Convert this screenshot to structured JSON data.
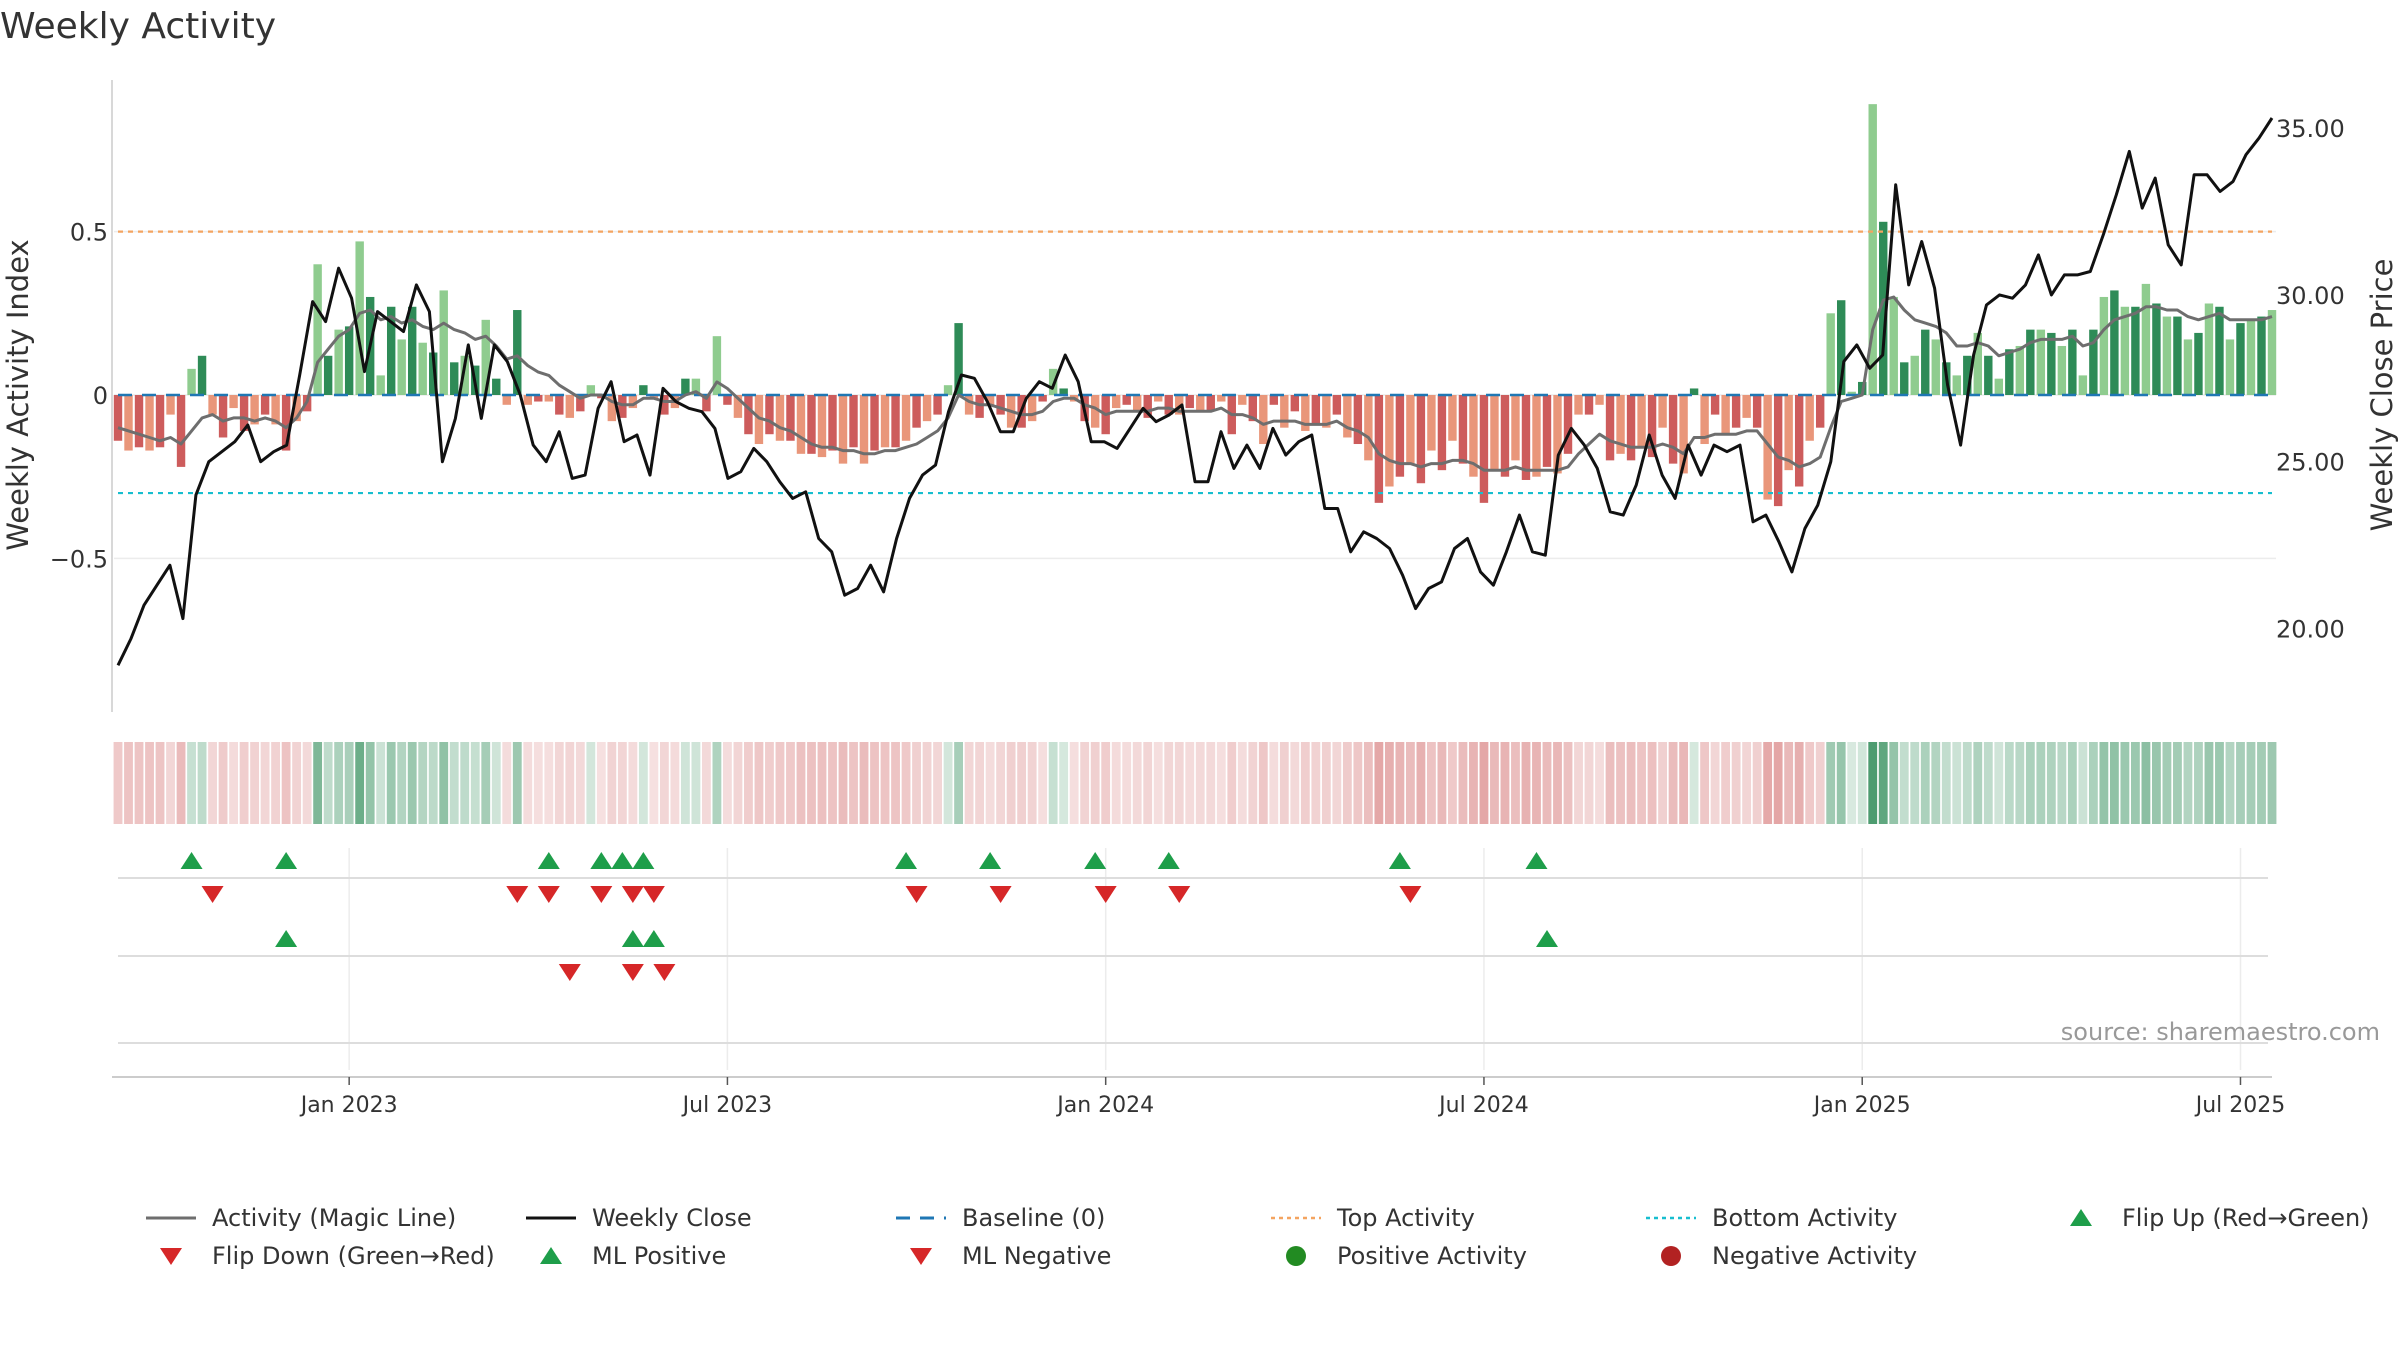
{
  "chart_data": {
    "type": "bar",
    "title": "Weekly Activity",
    "ylabel_left": "Weekly Activity Index",
    "ylabel_right": "Weekly Close Price",
    "source": "source: sharemaestro.com",
    "x_ticks": [
      "Jan 2023",
      "Jul 2023",
      "Jan 2024",
      "Jul 2024",
      "Jan 2025",
      "Jul 2025"
    ],
    "left_ticks": [
      "0.5",
      "0",
      "−0.5"
    ],
    "right_ticks": [
      "35.00",
      "30.00",
      "25.00",
      "20.00"
    ],
    "left_ylim": [
      -0.97,
      0.97
    ],
    "right_ylim": [
      17.5,
      36.5
    ],
    "top_activity": 0.5,
    "bottom_activity": -0.3,
    "activity": [
      -0.14,
      -0.17,
      -0.16,
      -0.17,
      -0.16,
      -0.06,
      -0.22,
      0.08,
      0.12,
      -0.06,
      -0.13,
      -0.04,
      -0.11,
      -0.09,
      -0.06,
      -0.09,
      -0.17,
      -0.08,
      -0.05,
      0.4,
      0.12,
      0.2,
      0.21,
      0.47,
      0.3,
      0.06,
      0.27,
      0.17,
      0.27,
      0.16,
      0.13,
      0.32,
      0.1,
      0.12,
      0.09,
      0.23,
      0.05,
      -0.03,
      0.26,
      -0.03,
      -0.02,
      -0.02,
      -0.06,
      -0.07,
      -0.05,
      0.03,
      -0.01,
      -0.08,
      -0.07,
      -0.04,
      0.03,
      -0.01,
      -0.06,
      -0.04,
      0.05,
      0.05,
      -0.05,
      0.18,
      -0.03,
      -0.07,
      -0.12,
      -0.15,
      -0.12,
      -0.14,
      -0.14,
      -0.18,
      -0.18,
      -0.19,
      -0.17,
      -0.21,
      -0.16,
      -0.21,
      -0.17,
      -0.16,
      -0.16,
      -0.14,
      -0.1,
      -0.08,
      -0.06,
      0.03,
      0.22,
      -0.06,
      -0.07,
      -0.03,
      -0.06,
      -0.1,
      -0.1,
      -0.08,
      -0.02,
      0.08,
      0.02,
      -0.02,
      -0.08,
      -0.1,
      -0.12,
      -0.04,
      -0.03,
      -0.05,
      -0.07,
      -0.02,
      -0.06,
      -0.06,
      -0.04,
      -0.05,
      -0.05,
      -0.02,
      -0.12,
      -0.03,
      -0.08,
      -0.15,
      -0.03,
      -0.1,
      -0.05,
      -0.11,
      -0.09,
      -0.1,
      -0.06,
      -0.13,
      -0.15,
      -0.2,
      -0.33,
      -0.28,
      -0.25,
      -0.21,
      -0.27,
      -0.17,
      -0.23,
      -0.14,
      -0.21,
      -0.25,
      -0.33,
      -0.23,
      -0.25,
      -0.2,
      -0.26,
      -0.25,
      -0.22,
      -0.24,
      -0.18,
      -0.06,
      -0.06,
      -0.03,
      -0.2,
      -0.18,
      -0.2,
      -0.16,
      -0.19,
      -0.1,
      -0.21,
      -0.24,
      0.02,
      -0.15,
      -0.06,
      -0.12,
      -0.1,
      -0.07,
      -0.1,
      -0.32,
      -0.34,
      -0.23,
      -0.28,
      -0.14,
      -0.1,
      0.25,
      0.29,
      0.01,
      0.04,
      0.89,
      0.53,
      0.3,
      0.1,
      0.12,
      0.2,
      0.17,
      0.1,
      0.06,
      0.12,
      0.19,
      0.12,
      0.05,
      0.14,
      0.15,
      0.2,
      0.2,
      0.19,
      0.15,
      0.2,
      0.06,
      0.2,
      0.3,
      0.32,
      0.27,
      0.27,
      0.34,
      0.28,
      0.24,
      0.24,
      0.17,
      0.19,
      0.28,
      0.27,
      0.17,
      0.22,
      0.23,
      0.24,
      0.26
    ],
    "magic_line": [
      -0.1,
      -0.11,
      -0.12,
      -0.13,
      -0.14,
      -0.13,
      -0.15,
      -0.11,
      -0.07,
      -0.06,
      -0.08,
      -0.07,
      -0.07,
      -0.08,
      -0.07,
      -0.08,
      -0.1,
      -0.07,
      -0.02,
      0.1,
      0.14,
      0.18,
      0.2,
      0.25,
      0.26,
      0.23,
      0.24,
      0.22,
      0.23,
      0.21,
      0.2,
      0.22,
      0.2,
      0.19,
      0.17,
      0.18,
      0.15,
      0.11,
      0.12,
      0.09,
      0.07,
      0.06,
      0.03,
      0.01,
      -0.01,
      0.0,
      0.0,
      -0.02,
      -0.03,
      -0.03,
      -0.01,
      -0.01,
      -0.02,
      -0.02,
      0.0,
      0.01,
      -0.01,
      0.04,
      0.02,
      -0.01,
      -0.04,
      -0.07,
      -0.08,
      -0.1,
      -0.11,
      -0.13,
      -0.15,
      -0.16,
      -0.16,
      -0.17,
      -0.17,
      -0.18,
      -0.18,
      -0.17,
      -0.17,
      -0.16,
      -0.15,
      -0.13,
      -0.11,
      -0.07,
      0.0,
      -0.02,
      -0.03,
      -0.03,
      -0.04,
      -0.05,
      -0.06,
      -0.06,
      -0.05,
      -0.02,
      -0.01,
      -0.01,
      -0.03,
      -0.04,
      -0.06,
      -0.05,
      -0.05,
      -0.05,
      -0.05,
      -0.04,
      -0.04,
      -0.05,
      -0.05,
      -0.05,
      -0.05,
      -0.04,
      -0.06,
      -0.06,
      -0.07,
      -0.09,
      -0.08,
      -0.08,
      -0.08,
      -0.09,
      -0.09,
      -0.09,
      -0.08,
      -0.1,
      -0.11,
      -0.13,
      -0.18,
      -0.2,
      -0.21,
      -0.21,
      -0.22,
      -0.21,
      -0.21,
      -0.2,
      -0.2,
      -0.21,
      -0.23,
      -0.23,
      -0.23,
      -0.22,
      -0.23,
      -0.23,
      -0.23,
      -0.23,
      -0.22,
      -0.18,
      -0.15,
      -0.12,
      -0.14,
      -0.15,
      -0.16,
      -0.16,
      -0.16,
      -0.15,
      -0.16,
      -0.18,
      -0.13,
      -0.13,
      -0.12,
      -0.12,
      -0.12,
      -0.11,
      -0.11,
      -0.15,
      -0.19,
      -0.2,
      -0.22,
      -0.21,
      -0.19,
      -0.1,
      -0.02,
      -0.01,
      0.0,
      0.2,
      0.29,
      0.3,
      0.26,
      0.23,
      0.22,
      0.21,
      0.19,
      0.15,
      0.15,
      0.16,
      0.15,
      0.12,
      0.13,
      0.14,
      0.16,
      0.17,
      0.17,
      0.17,
      0.18,
      0.15,
      0.16,
      0.2,
      0.23,
      0.24,
      0.25,
      0.27,
      0.27,
      0.26,
      0.26,
      0.24,
      0.23,
      0.24,
      0.25,
      0.23,
      0.23,
      0.23,
      0.23,
      0.24
    ],
    "weekly_close": [
      18.9,
      19.7,
      20.7,
      21.3,
      21.9,
      20.3,
      24.0,
      25.0,
      25.3,
      25.6,
      26.1,
      25.0,
      25.3,
      25.5,
      27.6,
      29.8,
      29.2,
      30.8,
      29.9,
      27.7,
      29.5,
      29.2,
      28.9,
      30.3,
      29.5,
      25.0,
      26.3,
      28.5,
      26.3,
      28.5,
      28.0,
      27.0,
      25.5,
      25.0,
      25.9,
      24.5,
      24.6,
      26.6,
      27.4,
      25.6,
      25.8,
      24.6,
      27.2,
      26.8,
      26.6,
      26.5,
      26.0,
      24.5,
      24.7,
      25.4,
      25.0,
      24.4,
      23.9,
      24.1,
      22.7,
      22.3,
      21.0,
      21.2,
      21.9,
      21.1,
      22.7,
      23.9,
      24.6,
      24.9,
      26.5,
      27.6,
      27.5,
      26.8,
      25.9,
      25.9,
      26.9,
      27.4,
      27.2,
      28.2,
      27.4,
      25.6,
      25.6,
      25.4,
      26.0,
      26.6,
      26.2,
      26.4,
      26.7,
      24.4,
      24.4,
      25.9,
      24.8,
      25.5,
      24.8,
      26.0,
      25.2,
      25.6,
      25.8,
      23.6,
      23.6,
      22.3,
      22.9,
      22.7,
      22.4,
      21.6,
      20.6,
      21.2,
      21.4,
      22.4,
      22.7,
      21.7,
      21.3,
      22.3,
      23.4,
      22.3,
      22.2,
      25.2,
      26.0,
      25.5,
      24.8,
      23.5,
      23.4,
      24.3,
      25.8,
      24.6,
      23.9,
      25.5,
      24.6,
      25.5,
      25.3,
      25.5,
      23.2,
      23.4,
      22.6,
      21.7,
      23.0,
      23.7,
      25.0,
      28.0,
      28.5,
      27.8,
      28.2,
      33.3,
      30.3,
      31.6,
      30.2,
      27.3,
      25.5,
      28.2,
      29.7,
      30.0,
      29.9,
      30.3,
      31.2,
      30.0,
      30.6,
      30.6,
      30.7,
      31.8,
      33.0,
      34.3,
      32.6,
      33.5,
      31.5,
      30.9,
      33.6,
      33.6,
      33.1,
      33.4,
      34.2,
      34.7,
      35.3
    ],
    "flip_up": [
      7,
      16,
      41,
      46,
      48,
      50,
      75,
      83,
      93,
      100,
      122,
      135
    ],
    "flip_down": [
      9,
      38,
      41,
      46,
      49,
      51,
      76,
      84,
      94,
      101,
      123
    ],
    "ml_positive": [
      16,
      49,
      51,
      136
    ],
    "ml_negative": [
      43,
      49,
      52
    ],
    "legend": [
      "Activity (Magic Line)",
      "Weekly Close",
      "Baseline (0)",
      "Top Activity",
      "Bottom Activity",
      "Flip Up (Red→Green)",
      "Flip Down (Green→Red)",
      "ML Positive",
      "ML Negative",
      "Positive Activity",
      "Negative Activity"
    ]
  },
  "colors": {
    "pos_dark": "#2e8b57",
    "pos_light": "#8fcc8f",
    "neg_dark": "#cd5c5c",
    "neg_light": "#e9967a",
    "magic_line": "#6e6e6e",
    "close_line": "#111111",
    "baseline": "#1f77b4",
    "top": "#f4a460",
    "bottom": "#17becf",
    "flip_up": "#1e9e4a",
    "flip_down": "#d62728",
    "positive_dot": "#228b22",
    "negative_dot": "#b22222"
  }
}
